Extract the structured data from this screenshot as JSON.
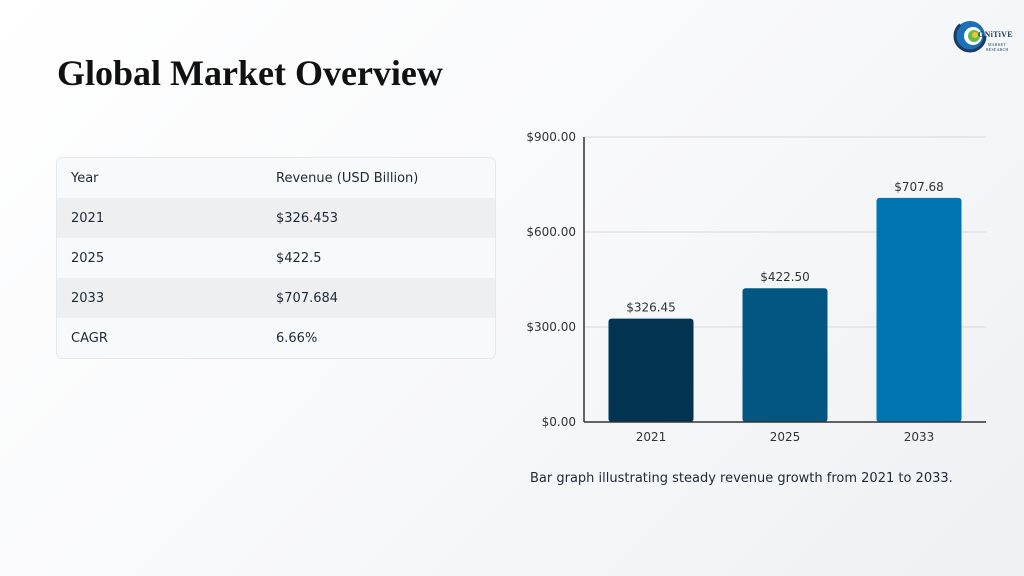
{
  "page": {
    "title": "Global Market Overview",
    "caption": "Bar graph illustrating steady revenue growth from 2021 to 2033."
  },
  "logo": {
    "word": "GNiTiVE",
    "sub1": "MARKET",
    "sub2": "RESEARCH"
  },
  "table": {
    "headers": [
      "Year",
      "Revenue (USD Billion)"
    ],
    "rows": [
      [
        "2021",
        "$326.453"
      ],
      [
        "2025",
        "$422.5"
      ],
      [
        "2033",
        "$707.684"
      ],
      [
        "CAGR",
        "6.66%"
      ]
    ]
  },
  "chart_data": {
    "type": "bar",
    "categories": [
      "2021",
      "2025",
      "2033"
    ],
    "values": [
      326.45,
      422.5,
      707.68
    ],
    "data_labels": [
      "$326.45",
      "$422.50",
      "$707.68"
    ],
    "yticks": [
      0,
      300,
      600,
      900
    ],
    "ytick_labels": [
      "$0.00",
      "$300.00",
      "$600.00",
      "$900.00"
    ],
    "ylim": [
      0,
      900
    ],
    "grid": true,
    "colors": [
      "#023350",
      "#035582",
      "#0075b0"
    ],
    "title": "",
    "xlabel": "",
    "ylabel": ""
  }
}
